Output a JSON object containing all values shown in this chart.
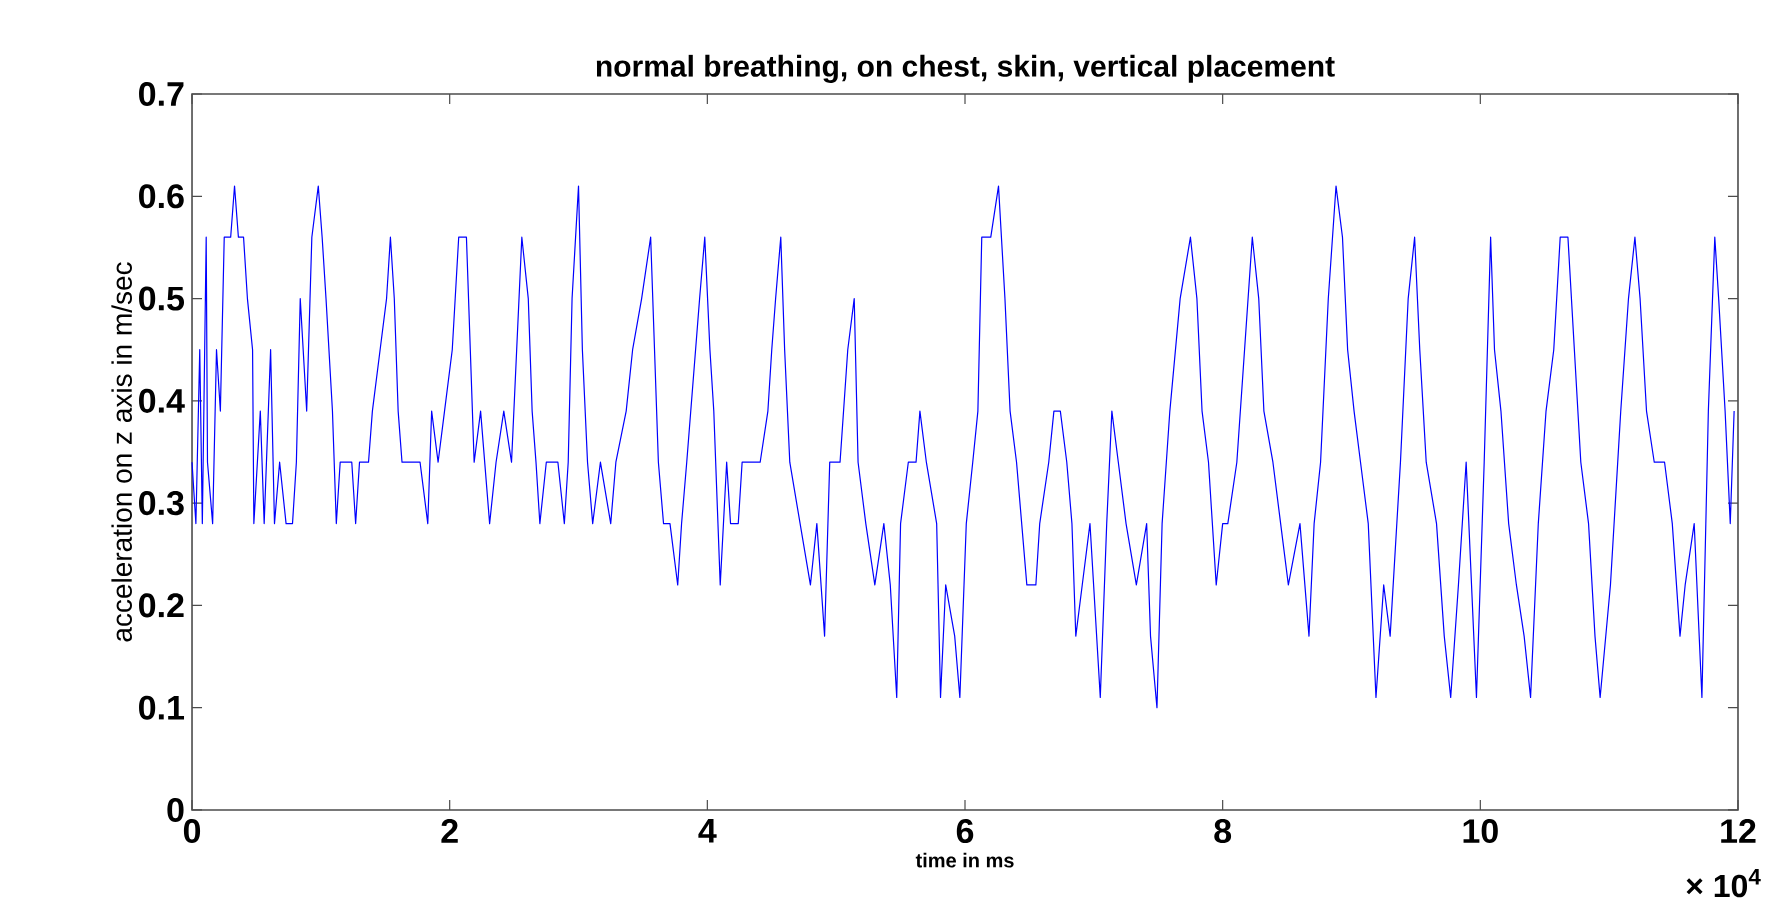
{
  "chart_data": {
    "type": "line",
    "title": "normal breathing, on chest, skin, vertical placement",
    "xlabel": "time in ms",
    "ylabel": "acceleration on z axis in m/sec",
    "xlim": [
      0,
      12
    ],
    "ylim": [
      0,
      0.7
    ],
    "xticks": [
      0,
      2,
      4,
      6,
      8,
      10,
      12
    ],
    "yticks": [
      0,
      0.1,
      0.2,
      0.3,
      0.4,
      0.5,
      0.6,
      0.7
    ],
    "annotations": [
      "× 10$^{4}$"
    ],
    "line_style": "solid",
    "series": [
      {
        "color": "#0000ff",
        "x": [
          0,
          0.03,
          0.06,
          0.08,
          0.11,
          0.12,
          0.16,
          0.19,
          0.22,
          0.25,
          0.3,
          0.33,
          0.36,
          0.4,
          0.43,
          0.47,
          0.48,
          0.53,
          0.56,
          0.61,
          0.64,
          0.68,
          0.73,
          0.78,
          0.81,
          0.84,
          0.89,
          0.93,
          0.98,
          1.01,
          1.04,
          1.09,
          1.12,
          1.15,
          1.24,
          1.27,
          1.3,
          1.37,
          1.4,
          1.46,
          1.51,
          1.54,
          1.57,
          1.6,
          1.63,
          1.77,
          1.83,
          1.86,
          1.91,
          1.96,
          2.02,
          2.07,
          2.13,
          2.16,
          2.19,
          2.24,
          2.31,
          2.36,
          2.42,
          2.48,
          2.52,
          2.56,
          2.61,
          2.64,
          2.67,
          2.7,
          2.75,
          2.84,
          2.89,
          2.92,
          2.95,
          3,
          3.03,
          3.07,
          3.11,
          3.17,
          3.25,
          3.29,
          3.37,
          3.42,
          3.49,
          3.56,
          3.59,
          3.62,
          3.66,
          3.71,
          3.77,
          3.8,
          3.84,
          3.94,
          3.98,
          4.02,
          4.05,
          4.1,
          4.15,
          4.18,
          4.24,
          4.27,
          4.41,
          4.47,
          4.5,
          4.53,
          4.57,
          4.6,
          4.64,
          4.8,
          4.85,
          4.91,
          4.95,
          5.03,
          5.09,
          5.14,
          5.17,
          5.23,
          5.3,
          5.37,
          5.42,
          5.47,
          5.5,
          5.56,
          5.62,
          5.65,
          5.7,
          5.78,
          5.81,
          5.85,
          5.92,
          5.96,
          6.01,
          6.06,
          6.1,
          6.13,
          6.2,
          6.26,
          6.31,
          6.35,
          6.4,
          6.44,
          6.48,
          6.55,
          6.58,
          6.65,
          6.69,
          6.74,
          6.79,
          6.83,
          6.86,
          6.91,
          6.97,
          7.05,
          7.1,
          7.14,
          7.19,
          7.25,
          7.33,
          7.41,
          7.44,
          7.49,
          7.53,
          7.59,
          7.67,
          7.75,
          7.8,
          7.84,
          7.89,
          7.95,
          8,
          8.04,
          8.11,
          8.17,
          8.23,
          8.28,
          8.32,
          8.39,
          8.45,
          8.51,
          8.6,
          8.67,
          8.71,
          8.76,
          8.82,
          8.88,
          8.93,
          8.97,
          9.02,
          9.07,
          9.13,
          9.19,
          9.25,
          9.3,
          9.38,
          9.44,
          9.49,
          9.53,
          9.58,
          9.66,
          9.72,
          9.77,
          9.83,
          9.89,
          9.97,
          10.03,
          10.08,
          10.11,
          10.16,
          10.22,
          10.28,
          10.34,
          10.39,
          10.45,
          10.51,
          10.57,
          10.62,
          10.68,
          10.73,
          10.78,
          10.84,
          10.89,
          10.93,
          11.01,
          11.09,
          11.15,
          11.2,
          11.24,
          11.29,
          11.35,
          11.43,
          11.49,
          11.55,
          11.59,
          11.66,
          11.72,
          11.77,
          11.82,
          11.85,
          11.9,
          11.94,
          11.97
        ],
        "values": [
          0.34,
          0.28,
          0.45,
          0.28,
          0.56,
          0.34,
          0.28,
          0.45,
          0.39,
          0.56,
          0.56,
          0.61,
          0.56,
          0.56,
          0.5,
          0.45,
          0.28,
          0.39,
          0.28,
          0.45,
          0.28,
          0.34,
          0.28,
          0.28,
          0.34,
          0.5,
          0.39,
          0.56,
          0.61,
          0.56,
          0.5,
          0.39,
          0.28,
          0.34,
          0.34,
          0.28,
          0.34,
          0.34,
          0.39,
          0.45,
          0.5,
          0.56,
          0.5,
          0.39,
          0.34,
          0.34,
          0.28,
          0.39,
          0.34,
          0.39,
          0.45,
          0.56,
          0.56,
          0.45,
          0.34,
          0.39,
          0.28,
          0.34,
          0.39,
          0.34,
          0.45,
          0.56,
          0.5,
          0.39,
          0.34,
          0.28,
          0.34,
          0.34,
          0.28,
          0.34,
          0.5,
          0.61,
          0.45,
          0.34,
          0.28,
          0.34,
          0.28,
          0.34,
          0.39,
          0.45,
          0.5,
          0.56,
          0.45,
          0.34,
          0.28,
          0.28,
          0.22,
          0.28,
          0.34,
          0.5,
          0.56,
          0.45,
          0.39,
          0.22,
          0.34,
          0.28,
          0.28,
          0.34,
          0.34,
          0.39,
          0.45,
          0.5,
          0.56,
          0.45,
          0.34,
          0.22,
          0.28,
          0.17,
          0.34,
          0.34,
          0.45,
          0.5,
          0.34,
          0.28,
          0.22,
          0.28,
          0.22,
          0.11,
          0.28,
          0.34,
          0.34,
          0.39,
          0.34,
          0.28,
          0.11,
          0.22,
          0.17,
          0.11,
          0.28,
          0.34,
          0.39,
          0.56,
          0.56,
          0.61,
          0.5,
          0.39,
          0.34,
          0.28,
          0.22,
          0.22,
          0.28,
          0.34,
          0.39,
          0.39,
          0.34,
          0.28,
          0.17,
          0.22,
          0.28,
          0.11,
          0.28,
          0.39,
          0.34,
          0.28,
          0.22,
          0.28,
          0.17,
          0.1,
          0.28,
          0.39,
          0.5,
          0.56,
          0.5,
          0.39,
          0.34,
          0.22,
          0.28,
          0.28,
          0.34,
          0.45,
          0.56,
          0.5,
          0.39,
          0.34,
          0.28,
          0.22,
          0.28,
          0.17,
          0.28,
          0.34,
          0.5,
          0.61,
          0.56,
          0.45,
          0.39,
          0.34,
          0.28,
          0.11,
          0.22,
          0.17,
          0.34,
          0.5,
          0.56,
          0.45,
          0.34,
          0.28,
          0.17,
          0.11,
          0.22,
          0.34,
          0.11,
          0.34,
          0.56,
          0.45,
          0.39,
          0.28,
          0.22,
          0.17,
          0.11,
          0.28,
          0.39,
          0.45,
          0.56,
          0.56,
          0.45,
          0.34,
          0.28,
          0.17,
          0.11,
          0.22,
          0.39,
          0.5,
          0.56,
          0.5,
          0.39,
          0.34,
          0.34,
          0.28,
          0.17,
          0.22,
          0.28,
          0.11,
          0.39,
          0.56,
          0.5,
          0.39,
          0.28,
          0.39
        ]
      }
    ]
  }
}
